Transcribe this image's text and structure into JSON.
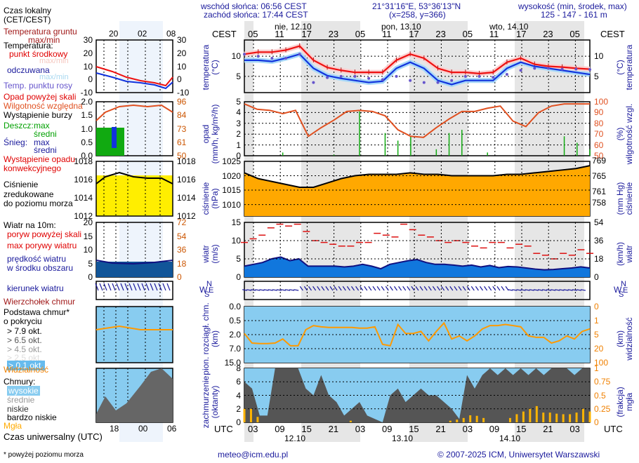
{
  "header": {
    "sunrise": "wschód słońca: 06:56 CEST",
    "sunset": "zachód słońca: 17:44 CEST",
    "coords": "21°31'16\"E, 53°36'13\"N",
    "grid": "(x=258, y=366)",
    "elevation_label": "wysokość (min, środek, max)",
    "elevation_values": "125 - 147 - 161 m"
  },
  "time_axis": {
    "tz_top": "CEST",
    "tz_bottom": "UTC",
    "days_top": [
      "nie, 12.10",
      "pon, 13.10",
      "wto, 14.10"
    ],
    "days_bottom": [
      "12.10",
      "13.10",
      "14.10"
    ],
    "hours_top": [
      "05",
      "11",
      "17",
      "23",
      "05",
      "11",
      "17",
      "23",
      "05",
      "11",
      "17",
      "23",
      "05"
    ],
    "hours_bottom": [
      "03",
      "09",
      "15",
      "21",
      "03",
      "09",
      "15",
      "21",
      "03",
      "09",
      "15",
      "21",
      "03"
    ]
  },
  "legend": {
    "local_time": "Czas lokalny",
    "local_time_sub": "(CET/CEST)",
    "ground_temp": "Temperatura gruntu",
    "ground_temp_sub": "max/min",
    "temperature": "Temperatura:",
    "midpoint": "punkt środkowy",
    "maxmin1": "max/min",
    "felt": "odczuwana",
    "maxmin2": "max/min",
    "dewpoint": "Temp. punktu rosy",
    "precip_over": "Opad powyżej skali",
    "humidity": "Wilgotność względna",
    "storm": "Wystąpienie burzy",
    "rain": "Deszcz:",
    "rain_max": "max",
    "rain_avg": "średni",
    "snow": "Śnieg:",
    "snow_max": "max",
    "snow_avg": "średni",
    "convective": "Wystąpienie opadu",
    "convective2": "konwekcyjnego",
    "pressure1": "Ciśnienie",
    "pressure2": "zredukowane",
    "pressure3": "do poziomu morza",
    "wind10": "Wiatr na 10m:",
    "gust_over": "poryw powyżej skali",
    "gust_max": "max porywy wiatru",
    "wind_speed": "prędkość wiatru",
    "wind_speed2": "w środku obszaru",
    "wind_dir": "kierunek wiatru",
    "cloud_top": "Wierzchołek chmur",
    "cloud_base": "Podstawa chmur*",
    "cloud_base2": "o pokryciu",
    "okt79": "> 7.9 okt.",
    "okt65": "> 6.5 okt.",
    "okt45": "> 4.5 okt.",
    "okt25": "> 2.5 okt.",
    "okt01": "> 0.1 okt.",
    "visibility": "Widzialność",
    "clouds": "Chmury:",
    "high": "wysokie",
    "mid": "średnie",
    "low": "niskie",
    "vlow": "bardzo niskie",
    "fog": "Mgła",
    "utc": "Czas uniwersalny (UTC)",
    "footnote": "* powyżej poziomu morza",
    "mini_hours_top": [
      "20",
      "02",
      "08"
    ],
    "mini_hours_bottom": [
      "18",
      "00",
      "06"
    ]
  },
  "panels": {
    "temp": {
      "label": "temperatura",
      "unit": "(°C)",
      "ticks": [
        "10",
        "5"
      ],
      "mini_ticks": [
        "30",
        "20",
        "10",
        "0",
        "-10"
      ]
    },
    "precip": {
      "label": "opad",
      "unit": "(mm/h, kg/m²/h)",
      "ticks": [
        "5",
        "4",
        "3",
        "2",
        "1",
        "0"
      ],
      "rh_label": "wilgotność wzgl.",
      "rh_unit": "(%)",
      "rh_ticks": [
        "100",
        "90",
        "80",
        "70",
        "60",
        "50"
      ],
      "mini_ticks": [
        "2.0",
        "1.5",
        "1.0",
        "0.5",
        "0.0"
      ],
      "mini_rh": [
        "96",
        "84",
        "73",
        "61",
        "50"
      ]
    },
    "pressure": {
      "label": "ciśnienie",
      "unit": "(hPa)",
      "ticks": [
        "1025",
        "1020",
        "1015",
        "1010"
      ],
      "mmhg_label": "ciśnienie",
      "mmhg_unit": "(mm Hg)",
      "mmhg_ticks": [
        "769",
        "765",
        "761",
        "758"
      ],
      "mini_ticks": [
        "1018",
        "1016",
        "1014",
        "1012"
      ]
    },
    "wind": {
      "label": "wiatr",
      "unit": "(m/s)",
      "ticks": [
        "15",
        "10",
        "5",
        "0"
      ],
      "kmh_label": "wiatr",
      "kmh_unit": "(km/h)",
      "kmh_ticks": [
        "54",
        "36",
        "18",
        "0"
      ],
      "mini_ticks": [
        "20",
        "15",
        "10",
        "5",
        "0"
      ],
      "mini_kmh": [
        "72",
        "54",
        "36",
        "18",
        "0"
      ]
    },
    "winddir": {
      "compass": [
        "N",
        "W",
        "E",
        "S"
      ]
    },
    "cloudbase": {
      "label": "pion. rozciągł. chm.",
      "unit": "(km)",
      "ticks": [
        "15.0",
        "7.0",
        "2.0",
        "0.5",
        "0.0"
      ],
      "vis_label": "widzialność",
      "vis_unit": "(km)",
      "vis_ticks": [
        "100",
        "20",
        "5",
        "1",
        "0"
      ]
    },
    "cloudcover": {
      "label": "zachmurzenie",
      "unit": "(oktanty)",
      "ticks": [
        "8",
        "6",
        "4",
        "2",
        "0"
      ],
      "fog_label": "mgła",
      "fog_unit": "(frakcja)",
      "fog_ticks": [
        "1",
        "0.75",
        "0.5",
        "0.25",
        "0"
      ]
    }
  },
  "footer": {
    "email": "meteo@icm.edu.pl",
    "copyright": "© 2007-2025 ICM, Uniwersytet Warszawski"
  },
  "colors": {
    "navy": "#1a1a9c",
    "temp_red": "#ee1111",
    "felt_blue": "#1133dd",
    "dew": "#6655cc",
    "humidity": "#e05020",
    "rain": "#11aa11",
    "pressure_fill": "#ffb000",
    "wind_fill": "#1177dd",
    "gust": "#dd1111",
    "vis": "#ff9900",
    "sky": "#88ccf0"
  },
  "chart_data": [
    {
      "type": "line",
      "title": "temperatura",
      "ylabel": "(°C)",
      "ylim": [
        1,
        14
      ],
      "x": [
        "05",
        "08",
        "11",
        "14",
        "17",
        "20",
        "23",
        "02",
        "05",
        "08",
        "11",
        "14",
        "17",
        "20",
        "23",
        "02",
        "05",
        "08",
        "11",
        "14",
        "17",
        "20",
        "23",
        "02",
        "05",
        "07"
      ],
      "series": [
        {
          "name": "punkt środkowy",
          "values": [
            10.5,
            11,
            11,
            11.5,
            12.5,
            9,
            7.2,
            6.5,
            6,
            6,
            6,
            9,
            10.5,
            9.5,
            7,
            6,
            6,
            5.7,
            6,
            8.5,
            9.5,
            8,
            7.5,
            7.3,
            7,
            6.8
          ]
        },
        {
          "name": "odczuwana",
          "values": [
            9,
            9,
            8.7,
            9.5,
            10.5,
            7,
            5.2,
            4.5,
            4,
            3.5,
            3.8,
            7,
            8.5,
            7,
            4,
            3,
            4,
            4,
            4,
            7,
            8.5,
            7.5,
            7,
            6.5,
            6,
            5.5
          ]
        },
        {
          "name": "Temp. punktu rosy",
          "values": [
            10.5,
            10,
            9.5,
            9.5,
            10.5,
            3.5,
            4.7,
            5,
            5,
            4.5,
            4.2,
            5,
            4,
            3.5,
            3.5,
            4,
            5,
            5,
            4.8,
            5.5,
            6.5,
            7,
            7,
            6.8,
            6.8,
            6.7
          ]
        }
      ]
    },
    {
      "type": "line",
      "title": "opad / wilgotność wzgl.",
      "ylabel": "(mm/h, kg/m²/h)",
      "ylim": [
        0,
        5
      ],
      "y2label": "(%)",
      "y2lim": [
        50,
        100
      ],
      "series": [
        {
          "name": "Wilgotność względna",
          "values": [
            98,
            93,
            92,
            89,
            92,
            68,
            76,
            83,
            91,
            92,
            91,
            87,
            74,
            68,
            67,
            76,
            84,
            91,
            91,
            94,
            96,
            82,
            77,
            90,
            96,
            98,
            98,
            98
          ]
        },
        {
          "name": "opad max",
          "values": [
            0,
            0,
            0,
            0.3,
            0,
            0,
            0,
            0.1,
            0,
            4.1,
            0,
            2.1,
            1.4,
            1.8,
            0,
            0.6,
            2.1,
            2.4,
            0,
            0.3,
            0,
            0,
            0,
            0,
            0,
            1.8,
            1.2,
            0.6
          ]
        }
      ]
    },
    {
      "type": "area",
      "title": "ciśnienie",
      "ylabel": "(hPa)",
      "ylim": [
        1006,
        1025
      ],
      "y2label": "(mm Hg)",
      "values": [
        1021,
        1019,
        1018,
        1017,
        1016,
        1016,
        1017.5,
        1019,
        1020,
        1020.5,
        1020.5,
        1020.5,
        1021,
        1020.5,
        1020.5,
        1020,
        1020,
        1020,
        1020,
        1020.5,
        1020.5,
        1021,
        1021.5,
        1022,
        1022.5,
        1023.5
      ]
    },
    {
      "type": "line",
      "title": "wiatr",
      "ylabel": "(m/s)",
      "ylim": [
        0,
        15
      ],
      "y2label": "(km/h)",
      "series": [
        {
          "name": "prędkość wiatru",
          "values": [
            3,
            3.5,
            4,
            5,
            5.5,
            4.5,
            5,
            3,
            3,
            3,
            3,
            2.8,
            3,
            3.5,
            3,
            2.3,
            3.5,
            4,
            4.5,
            4.8,
            4,
            3.5,
            3.5,
            3.3,
            3,
            3.3,
            2.8,
            3.2,
            2.6,
            2.9,
            2.8,
            2.5,
            2.2,
            2,
            2.1,
            2.3,
            2.5,
            2.8,
            2.5
          ]
        },
        {
          "name": "max porywy wiatru",
          "values": [
            9.5,
            10.5,
            11.5,
            13.5,
            14.5,
            14,
            14.5,
            12.5,
            10,
            9.5,
            9,
            8.5,
            8.5,
            9.5,
            9.5,
            12,
            11.5,
            11,
            14.5,
            13,
            11.5,
            11,
            10,
            9.5,
            10,
            9.5,
            8.5,
            8,
            9.5,
            9.5,
            8,
            9,
            8.5,
            6.5,
            6,
            5,
            6.5,
            6,
            7.5,
            6.5
          ]
        }
      ]
    },
    {
      "type": "scatter",
      "title": "pion. rozciągł. chm. / widzialność",
      "ylabel": "(km)",
      "yticks": [
        "0.0",
        "0.5",
        "2.0",
        "7.0",
        "15.0"
      ],
      "y2label": "widzialność (km)",
      "y2ticks": [
        "0",
        "1",
        "5",
        "20",
        "100"
      ],
      "series": [
        {
          "name": "Widzialność",
          "values": [
            10,
            4,
            3.8,
            3.8,
            4,
            6,
            3,
            3,
            14,
            20,
            18,
            17,
            17,
            17,
            17,
            16,
            16,
            18,
            3.5,
            3,
            22,
            10,
            10,
            12,
            5,
            12,
            25,
            6,
            8,
            5,
            8,
            15,
            20,
            20,
            22,
            20,
            18,
            8,
            7,
            7,
            4,
            5,
            8,
            6,
            12,
            15
          ]
        }
      ]
    },
    {
      "type": "area",
      "title": "zachmurzenie / mgła",
      "ylabel": "(oktanty)",
      "ylim": [
        0,
        8
      ],
      "y2label": "(frakcja)",
      "y2lim": [
        0,
        1
      ],
      "series": [
        {
          "name": "niskie",
          "values": [
            6,
            5,
            1,
            1,
            8,
            8,
            8,
            8,
            5,
            4,
            7,
            4,
            3,
            1,
            2,
            3,
            1,
            0.5,
            0,
            4,
            5,
            3,
            4,
            5,
            4,
            4,
            3,
            2,
            0.5,
            7,
            5,
            7,
            8,
            7,
            8,
            7,
            8,
            7,
            8,
            7,
            8,
            8,
            8,
            7,
            8,
            8
          ]
        },
        {
          "name": "Mgła",
          "values": [
            0.25,
            0.25,
            0.1,
            0,
            0,
            0,
            0,
            0,
            0,
            0,
            0,
            0,
            0,
            0,
            0,
            0,
            0.03,
            0,
            0,
            0,
            0,
            0,
            0,
            0,
            0,
            0,
            0,
            0,
            0,
            0,
            0,
            0.03,
            0.05,
            0.08,
            0.13,
            0.12,
            0.08,
            0,
            0,
            0,
            0.08,
            0.15,
            0.2,
            0.25,
            0.3,
            0.18,
            0.18,
            0.16,
            0.15,
            0.15,
            0.18,
            0.25,
            0.2
          ]
        }
      ]
    }
  ]
}
